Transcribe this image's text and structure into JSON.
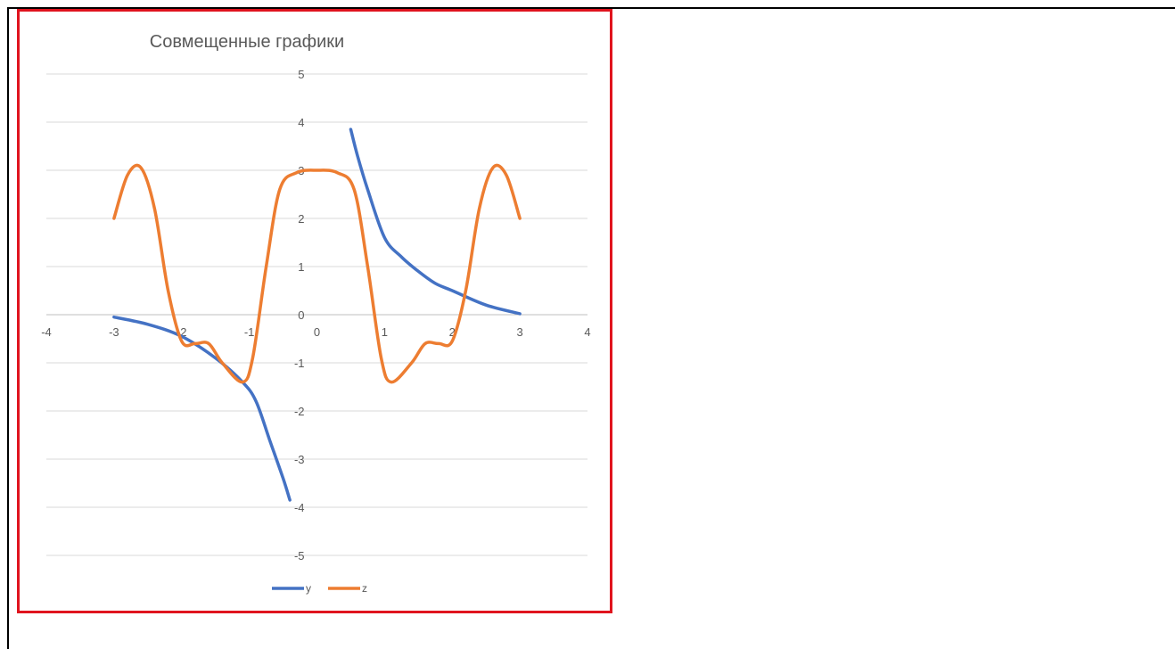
{
  "chart_data": {
    "type": "line",
    "title": "Совмещенные графики",
    "xlim": [
      -4,
      4
    ],
    "ylim": [
      -5,
      5
    ],
    "x_ticks": [
      "-4",
      "-3",
      "-2",
      "-1",
      "0",
      "1",
      "2",
      "3",
      "4"
    ],
    "y_ticks": [
      "5",
      "4",
      "3",
      "2",
      "1",
      "0",
      "-1",
      "-2",
      "-3",
      "-4",
      "-5"
    ],
    "grid": true,
    "legend": "bottom",
    "series": [
      {
        "name": "y",
        "color": "#4472c4",
        "segments": [
          [
            [
              -3,
              -0.05
            ],
            [
              -2.5,
              -0.2
            ],
            [
              -2,
              -0.45
            ],
            [
              -1.5,
              -0.9
            ],
            [
              -1.1,
              -1.4
            ],
            [
              -0.9,
              -1.8
            ],
            [
              -0.7,
              -2.6
            ],
            [
              -0.5,
              -3.4
            ],
            [
              -0.4,
              -3.85
            ]
          ],
          [
            [
              0.5,
              3.85
            ],
            [
              0.6,
              3.3
            ],
            [
              0.75,
              2.6
            ],
            [
              1,
              1.6
            ],
            [
              1.25,
              1.2
            ],
            [
              1.5,
              0.9
            ],
            [
              1.75,
              0.65
            ],
            [
              2,
              0.5
            ],
            [
              2.5,
              0.2
            ],
            [
              3,
              0.02
            ]
          ]
        ]
      },
      {
        "name": "z",
        "color": "#ed7d31",
        "segments": [
          [
            [
              -3,
              2
            ],
            [
              -2.8,
              2.9
            ],
            [
              -2.6,
              3.05
            ],
            [
              -2.4,
              2.2
            ],
            [
              -2.2,
              0.5
            ],
            [
              -2,
              -0.55
            ],
            [
              -1.8,
              -0.6
            ],
            [
              -1.6,
              -0.6
            ],
            [
              -1.4,
              -1
            ],
            [
              -1.1,
              -1.4
            ],
            [
              -0.95,
              -0.9
            ],
            [
              -0.75,
              1.0
            ],
            [
              -0.55,
              2.6
            ],
            [
              -0.3,
              2.95
            ],
            [
              0,
              3.0
            ],
            [
              0.3,
              2.95
            ],
            [
              0.55,
              2.6
            ],
            [
              0.75,
              1.0
            ],
            [
              0.95,
              -0.9
            ],
            [
              1.1,
              -1.4
            ],
            [
              1.4,
              -1
            ],
            [
              1.6,
              -0.6
            ],
            [
              1.8,
              -0.6
            ],
            [
              2,
              -0.55
            ],
            [
              2.2,
              0.5
            ],
            [
              2.4,
              2.2
            ],
            [
              2.6,
              3.05
            ],
            [
              2.8,
              2.9
            ],
            [
              3,
              2
            ]
          ]
        ]
      }
    ]
  }
}
